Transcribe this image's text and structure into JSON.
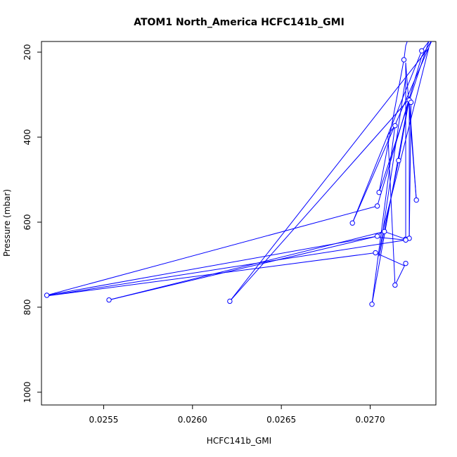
{
  "chart_data": {
    "type": "line",
    "title": "ATOM1 North_America HCFC141b_GMI",
    "xlabel": "HCFC141b_GMI",
    "ylabel": "Pressure (mbar)",
    "xlim": [
      0.02515,
      0.02737
    ],
    "ylim": [
      1030,
      175
    ],
    "y_reversed": true,
    "x_ticks": [
      0.0255,
      0.026,
      0.0265,
      0.027
    ],
    "x_tick_labels": [
      "0.0255",
      "0.0260",
      "0.0265",
      "0.0270"
    ],
    "y_ticks": [
      200,
      400,
      600,
      800,
      1000
    ],
    "y_tick_labels": [
      "200",
      "400",
      "600",
      "800",
      "1000"
    ],
    "grid": false,
    "series": [
      {
        "color": "#0000ff",
        "marker": "open-circle",
        "points": [
          {
            "x": 0.02722,
            "y": 162,
            "marker": false
          },
          {
            "x": 0.0272,
            "y": 185,
            "marker": false
          },
          {
            "x": 0.02719,
            "y": 218
          },
          {
            "x": 0.02705,
            "y": 530
          },
          {
            "x": 0.02733,
            "y": 175,
            "marker": false
          },
          {
            "x": 0.02729,
            "y": 197
          },
          {
            "x": 0.0269,
            "y": 602
          },
          {
            "x": 0.02735,
            "y": 170,
            "marker": false
          },
          {
            "x": 0.02729,
            "y": 210,
            "marker": false
          },
          {
            "x": 0.02704,
            "y": 562
          },
          {
            "x": 0.02518,
            "y": 772
          },
          {
            "x": 0.02704,
            "y": 633
          },
          {
            "x": 0.02553,
            "y": 783
          },
          {
            "x": 0.02708,
            "y": 622
          },
          {
            "x": 0.0272,
            "y": 640
          },
          {
            "x": 0.0272,
            "y": 225,
            "marker": false
          },
          {
            "x": 0.02726,
            "y": 548
          },
          {
            "x": 0.02722,
            "y": 313
          },
          {
            "x": 0.02723,
            "y": 318
          },
          {
            "x": 0.02722,
            "y": 638
          },
          {
            "x": 0.02722,
            "y": 305,
            "marker": false
          },
          {
            "x": 0.02701,
            "y": 793
          },
          {
            "x": 0.02714,
            "y": 373
          },
          {
            "x": 0.0271,
            "y": 395,
            "marker": false
          },
          {
            "x": 0.02714,
            "y": 748
          },
          {
            "x": 0.0272,
            "y": 697
          },
          {
            "x": 0.02719,
            "y": 702,
            "marker": false
          },
          {
            "x": 0.02703,
            "y": 672
          },
          {
            "x": 0.02517,
            "y": 774,
            "marker": false
          },
          {
            "x": 0.0272,
            "y": 642
          },
          {
            "x": 0.02703,
            "y": 635,
            "marker": false
          },
          {
            "x": 0.02707,
            "y": 622,
            "marker": false
          },
          {
            "x": 0.02733,
            "y": 190,
            "marker": false
          },
          {
            "x": 0.02621,
            "y": 786
          },
          {
            "x": 0.02722,
            "y": 310,
            "marker": false
          },
          {
            "x": 0.02716,
            "y": 455
          },
          {
            "x": 0.02705,
            "y": 680,
            "marker": false
          },
          {
            "x": 0.0272,
            "y": 260,
            "marker": false
          }
        ]
      }
    ]
  }
}
